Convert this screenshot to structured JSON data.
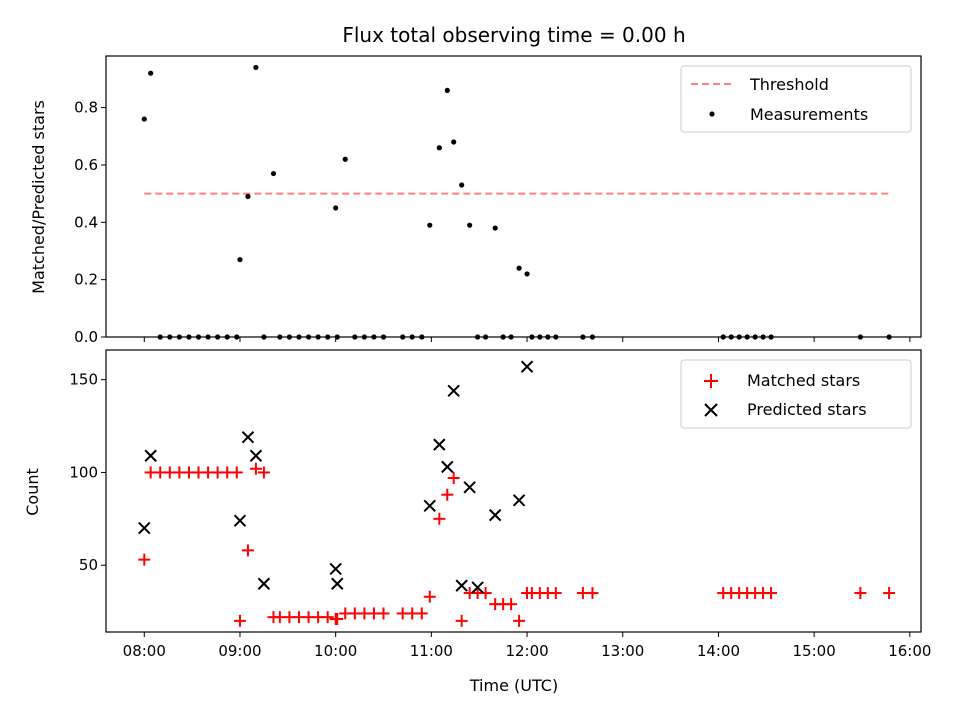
{
  "chart_data": [
    {
      "type": "scatter",
      "title": "Flux total observing time = 0.00 h",
      "xlabel": "",
      "ylabel": "Matched/Predicted stars",
      "xlim": [
        "07:36",
        "16:07"
      ],
      "ylim": [
        0,
        0.98
      ],
      "yticks": [
        0,
        0.2,
        0.4,
        0.6,
        0.8
      ],
      "yticklabels": [
        "0.0",
        "0.2",
        "0.4",
        "0.6",
        "0.8"
      ],
      "legend": "top-right",
      "legend_entries": [
        "Threshold",
        "Measurements"
      ],
      "colors": {
        "threshold": "#ff8080",
        "measurements": "#000000"
      },
      "threshold": {
        "name": "Threshold",
        "y": 0.5,
        "x": [
          "08:00",
          "15:48"
        ]
      },
      "series": [
        {
          "name": "Measurements",
          "x": [
            "08:00",
            "08:04",
            "08:10",
            "08:16",
            "08:22",
            "08:28",
            "08:34",
            "08:40",
            "08:46",
            "08:52",
            "08:58",
            "09:00",
            "09:05",
            "09:10",
            "09:15",
            "09:21",
            "09:25",
            "09:31",
            "09:37",
            "09:43",
            "09:49",
            "09:55",
            "10:00",
            "10:01",
            "10:06",
            "10:12",
            "10:18",
            "10:24",
            "10:30",
            "10:42",
            "10:48",
            "10:54",
            "10:59",
            "11:05",
            "11:10",
            "11:14",
            "11:19",
            "11:24",
            "11:29",
            "11:34",
            "11:40",
            "11:45",
            "11:50",
            "11:55",
            "12:00",
            "12:03",
            "12:08",
            "12:13",
            "12:18",
            "12:35",
            "12:41",
            "14:03",
            "14:08",
            "14:13",
            "14:18",
            "14:23",
            "14:28",
            "14:33",
            "15:29",
            "15:47"
          ],
          "y": [
            0.76,
            0.92,
            0,
            0,
            0,
            0,
            0,
            0,
            0,
            0,
            0,
            0.27,
            0.49,
            0.94,
            0,
            0.57,
            0,
            0,
            0,
            0,
            0,
            0,
            0.45,
            0,
            0.62,
            0,
            0,
            0,
            0,
            0,
            0,
            0,
            0.39,
            0.66,
            0.86,
            0.68,
            0.53,
            0.39,
            0,
            0,
            0.38,
            0,
            0,
            0.24,
            0.22,
            0,
            0,
            0,
            0,
            0,
            0,
            0,
            0,
            0,
            0,
            0,
            0,
            0,
            0,
            0
          ]
        }
      ]
    },
    {
      "type": "scatter",
      "title": "",
      "xlabel": "Time (UTC)",
      "ylabel": "Count",
      "xlim": [
        "07:36",
        "16:07"
      ],
      "ylim": [
        14,
        166
      ],
      "yticks": [
        50,
        100,
        150
      ],
      "yticklabels": [
        "50",
        "100",
        "150"
      ],
      "xticks": [
        "08:00",
        "09:00",
        "10:00",
        "11:00",
        "12:00",
        "13:00",
        "14:00",
        "15:00",
        "16:00"
      ],
      "legend": "top-right",
      "legend_entries": [
        "Matched stars",
        "Predicted stars"
      ],
      "colors": {
        "matched": "#ff0000",
        "predicted": "#000000"
      },
      "series": [
        {
          "name": "Matched stars",
          "marker": "plus",
          "x": [
            "08:00",
            "08:04",
            "08:10",
            "08:16",
            "08:22",
            "08:28",
            "08:34",
            "08:40",
            "08:46",
            "08:52",
            "08:58",
            "09:00",
            "09:05",
            "09:10",
            "09:15",
            "09:21",
            "09:25",
            "09:31",
            "09:37",
            "09:43",
            "09:49",
            "09:55",
            "10:00",
            "10:01",
            "10:06",
            "10:12",
            "10:18",
            "10:24",
            "10:30",
            "10:42",
            "10:48",
            "10:54",
            "10:59",
            "11:05",
            "11:10",
            "11:14",
            "11:19",
            "11:24",
            "11:29",
            "11:34",
            "11:40",
            "11:45",
            "11:50",
            "11:55",
            "12:00",
            "12:03",
            "12:08",
            "12:13",
            "12:18",
            "12:35",
            "12:41",
            "14:03",
            "14:08",
            "14:13",
            "14:18",
            "14:23",
            "14:28",
            "14:33",
            "15:29",
            "15:47"
          ],
          "y": [
            53,
            100,
            100,
            100,
            100,
            100,
            100,
            100,
            100,
            100,
            100,
            20,
            58,
            102,
            100,
            22,
            22,
            22,
            22,
            22,
            22,
            22,
            21,
            21,
            24,
            24,
            24,
            24,
            24,
            24,
            24,
            24,
            33,
            75,
            88,
            97,
            20,
            35,
            35,
            35,
            29,
            29,
            29,
            20,
            35,
            35,
            35,
            35,
            35,
            35,
            35,
            35,
            35,
            35,
            35,
            35,
            35,
            35,
            35,
            35
          ]
        },
        {
          "name": "Predicted stars",
          "marker": "x",
          "x": [
            "08:00",
            "08:04",
            "09:00",
            "09:05",
            "09:10",
            "09:15",
            "10:00",
            "10:01",
            "10:59",
            "11:05",
            "11:10",
            "11:14",
            "11:19",
            "11:24",
            "11:29",
            "11:40",
            "11:55",
            "12:00"
          ],
          "y": [
            70,
            109,
            74,
            119,
            109,
            40,
            48,
            40,
            82,
            115,
            103,
            144,
            39,
            92,
            38,
            77,
            85,
            157
          ]
        }
      ]
    }
  ]
}
